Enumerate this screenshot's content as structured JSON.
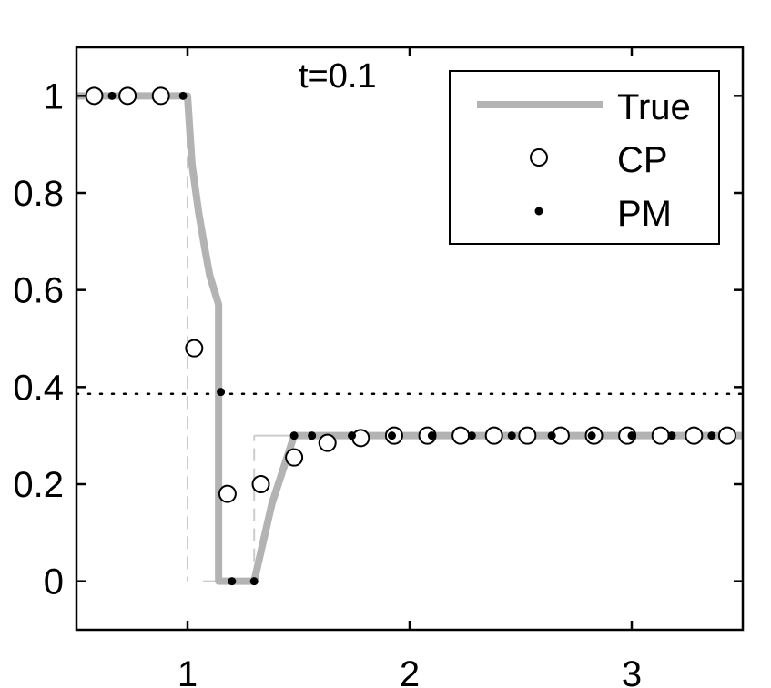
{
  "chart_data": {
    "type": "line",
    "title": "",
    "xlabel": "",
    "ylabel": "",
    "annotation": "t=0.1",
    "xlim": [
      0.5,
      3.5
    ],
    "ylim": [
      -0.1,
      1.1
    ],
    "x_ticks": [
      1,
      2,
      3
    ],
    "x_tick_labels": [
      "1",
      "2",
      "3"
    ],
    "y_ticks": [
      0,
      0.2,
      0.4,
      0.6,
      0.8,
      1
    ],
    "y_tick_labels": [
      "0",
      "0.2",
      "0.4",
      "0.6",
      "0.8",
      "1"
    ],
    "grid": false,
    "legend_position": "top-right",
    "colors": {
      "true_line": "#b3b3b3",
      "guide": "#cccccc",
      "axis": "#000000"
    },
    "reference_line": {
      "y": 0.386,
      "style": "dotted"
    },
    "guide_lines": [
      {
        "points": [
          [
            1.0,
            1.0
          ],
          [
            1.0,
            0.0
          ]
        ],
        "style": "dashed"
      },
      {
        "points": [
          [
            1.07,
            0.0
          ],
          [
            1.3,
            0.0
          ]
        ],
        "style": "solid"
      },
      {
        "points": [
          [
            1.3,
            0.0
          ],
          [
            1.3,
            0.3
          ]
        ],
        "style": "dashed"
      },
      {
        "points": [
          [
            1.3,
            0.3
          ],
          [
            3.5,
            0.3
          ]
        ],
        "style": "solid"
      }
    ],
    "series": [
      {
        "name": "True",
        "marker": "line",
        "x": [
          0.5,
          1.0,
          1.02,
          1.05,
          1.08,
          1.1,
          1.14,
          1.14,
          1.3,
          1.34,
          1.38,
          1.43,
          1.48,
          3.5
        ],
        "y": [
          1.0,
          1.0,
          0.86,
          0.76,
          0.68,
          0.63,
          0.57,
          0.0,
          0.0,
          0.08,
          0.16,
          0.23,
          0.3,
          0.3
        ]
      },
      {
        "name": "CP",
        "marker": "open-circle",
        "x": [
          0.58,
          0.73,
          0.88,
          1.03,
          1.18,
          1.33,
          1.48,
          1.63,
          1.78,
          1.93,
          2.08,
          2.23,
          2.38,
          2.53,
          2.68,
          2.83,
          2.98,
          3.13,
          3.28,
          3.43
        ],
        "y": [
          1.0,
          1.0,
          1.0,
          0.48,
          0.18,
          0.2,
          0.255,
          0.285,
          0.295,
          0.3,
          0.3,
          0.3,
          0.3,
          0.3,
          0.3,
          0.3,
          0.3,
          0.3,
          0.3,
          0.3
        ]
      },
      {
        "name": "PM",
        "marker": "dot",
        "x": [
          0.66,
          0.98,
          1.15,
          1.2,
          1.3,
          1.48,
          1.56,
          1.74,
          1.92,
          2.1,
          2.28,
          2.46,
          2.64,
          2.82,
          3.0,
          3.18,
          3.36
        ],
        "y": [
          1.0,
          1.0,
          0.39,
          0.0,
          0.0,
          0.3,
          0.3,
          0.3,
          0.3,
          0.3,
          0.3,
          0.3,
          0.3,
          0.3,
          0.3,
          0.3,
          0.3
        ]
      }
    ]
  }
}
